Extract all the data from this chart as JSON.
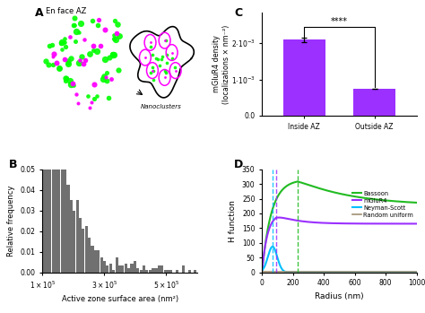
{
  "panel_C": {
    "categories": [
      "Inside AZ",
      "Outside AZ"
    ],
    "values": [
      0.0021,
      0.00075
    ],
    "errors": [
      6e-05,
      3e-06
    ],
    "bar_color": "#9B30FF",
    "ylabel": "mGluR4 density\n(localizations × nm⁻²)",
    "sig_text": "****"
  },
  "panel_D": {
    "xlabel": "Radius (nm)",
    "ylabel": "H function",
    "xlim": [
      0,
      1000
    ],
    "ylim": [
      0,
      350
    ],
    "dashed_x_green": 230,
    "dashed_x_purple": 90,
    "dashed_x_cyan": 70,
    "legend": [
      "Bassoon",
      "mGluR4",
      "Neyman-Scott",
      "Random uniform"
    ],
    "colors": [
      "#22BB22",
      "#9B30FF",
      "#00BFFF",
      "#A09070"
    ]
  },
  "panel_B": {
    "xlabel": "Active zone surface area (nm²)",
    "ylabel": "Relative frequency",
    "bar_color": "#707070"
  }
}
